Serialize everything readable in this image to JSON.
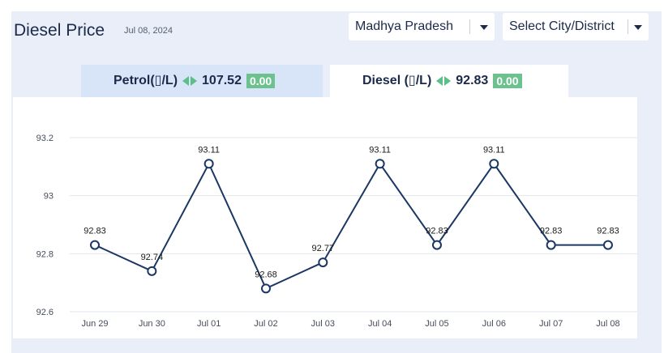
{
  "header": {
    "title": "Diesel Price",
    "date": "Jul 08, 2024"
  },
  "filters": {
    "state": "Madhya Pradesh",
    "city": "Select City/District"
  },
  "tabs": [
    {
      "label": "Petrol(▯/L)",
      "price": "107.52",
      "change": "0.00",
      "active": false
    },
    {
      "label": "Diesel (▯/L)",
      "price": "92.83",
      "change": "0.00",
      "active": true
    }
  ],
  "colors": {
    "line": "#1b3764",
    "badge": "#6cc28e",
    "active_tab": "#ffffff",
    "inactive_tab": "#d8e4f8"
  },
  "chart_data": {
    "type": "line",
    "categories": [
      "Jun 29",
      "Jun 30",
      "Jul 01",
      "Jul 02",
      "Jul 03",
      "Jul 04",
      "Jul 05",
      "Jul 06",
      "Jul 07",
      "Jul 08"
    ],
    "values": [
      92.83,
      92.74,
      93.11,
      92.68,
      92.77,
      93.11,
      92.83,
      93.11,
      92.83,
      92.83
    ],
    "data_labels": [
      "92.83",
      "92.74",
      "93.11",
      "92.68",
      "92.77",
      "93.11",
      "92.83",
      "93.11",
      "92.83",
      "92.83"
    ],
    "y_ticks": [
      "92.6",
      "92.8",
      "93",
      "93.2"
    ],
    "ylim": [
      92.6,
      93.2
    ],
    "grid": true
  }
}
